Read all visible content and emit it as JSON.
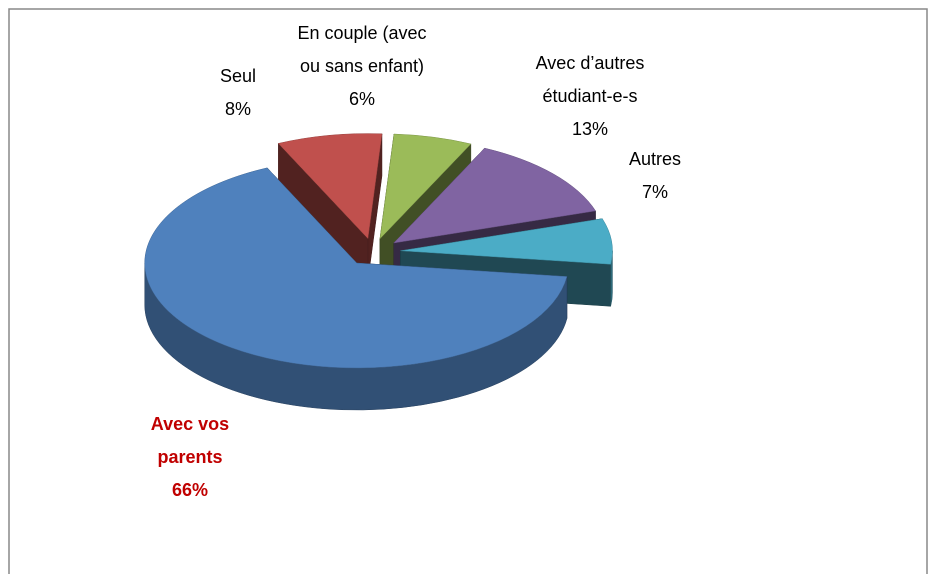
{
  "chart_data": {
    "type": "pie3d",
    "categories": [
      "Seul",
      "En couple (avec ou sans enfant)",
      "Avec d’autres étudiant-e-s",
      "Autres",
      "Avec vos parents"
    ],
    "values": [
      8,
      6,
      13,
      7,
      66
    ],
    "value_labels": [
      "8%",
      "6%",
      "13%",
      "7%",
      "66%"
    ],
    "colors": [
      "#c0504d",
      "#9bbb59",
      "#8064a2",
      "#4bacc6",
      "#4f81bd"
    ]
  }
}
